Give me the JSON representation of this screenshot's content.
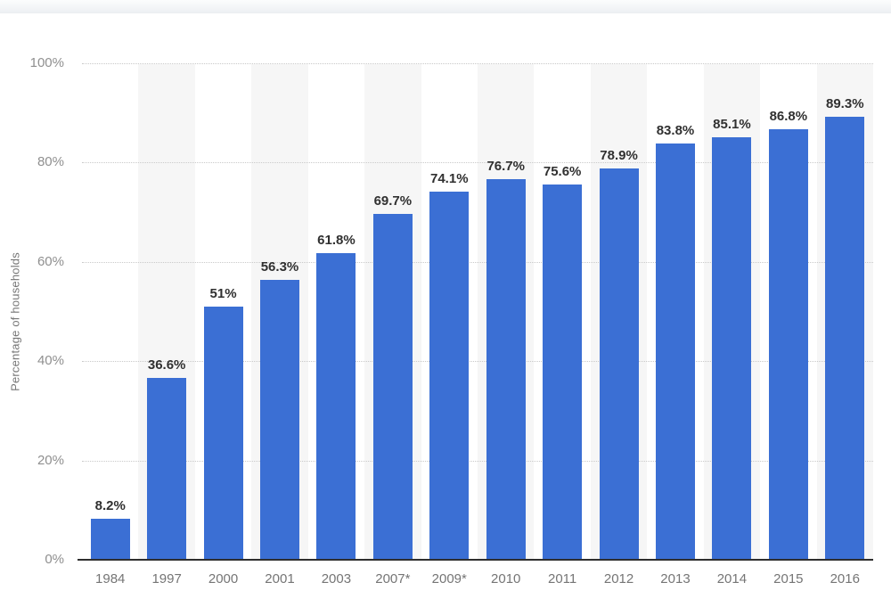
{
  "chart_data": {
    "type": "bar",
    "title": "",
    "xlabel": "",
    "ylabel": "Percentage of households",
    "categories": [
      "1984",
      "1997",
      "2000",
      "2001",
      "2003",
      "2007*",
      "2009*",
      "2010",
      "2011",
      "2012",
      "2013",
      "2014",
      "2015",
      "2016"
    ],
    "values": [
      8.2,
      36.6,
      51,
      56.3,
      61.8,
      69.7,
      74.1,
      76.7,
      75.6,
      78.9,
      83.8,
      85.1,
      86.8,
      89.3
    ],
    "value_labels": [
      "8.2%",
      "36.6%",
      "51%",
      "56.3%",
      "61.8%",
      "69.7%",
      "74.1%",
      "76.7%",
      "75.6%",
      "78.9%",
      "83.8%",
      "85.1%",
      "86.8%",
      "89.3%"
    ],
    "ylim": [
      0,
      100
    ],
    "yticks": [
      0,
      20,
      40,
      60,
      80,
      100
    ],
    "ytick_labels": [
      "0%",
      "20%",
      "40%",
      "60%",
      "80%",
      "100%"
    ],
    "grid": "horizontal-dotted",
    "legend": null,
    "colors": {
      "bar": "#3b6fd4",
      "column_band": "#f6f6f6",
      "gridline": "#c9c9c9",
      "baseline": "#2e2e2e",
      "ytick_text": "#8f8f8f",
      "xtick_text": "#757575",
      "value_text": "#303030",
      "ylabel_text": "#767676"
    }
  }
}
